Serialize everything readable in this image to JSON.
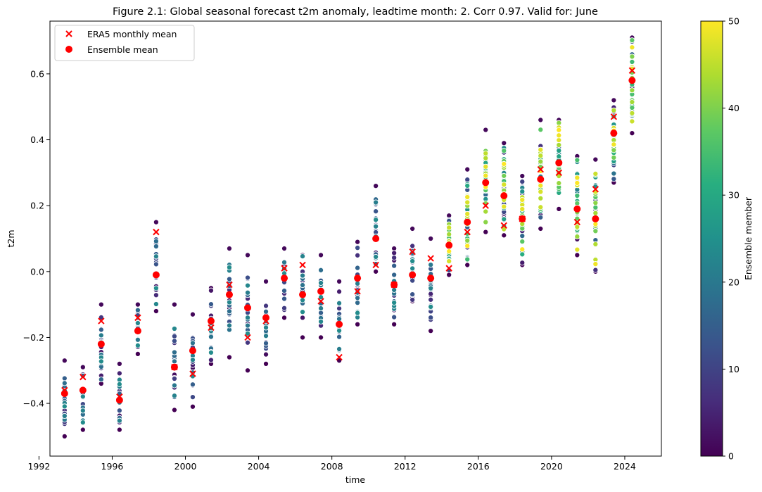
{
  "chart_data": {
    "type": "scatter",
    "title": "Figure 2.1: Global seasonal forecast t2m anomaly, leadtime month: 2. Corr 0.97. Valid for: June",
    "xlabel": "time",
    "ylabel": "t2m",
    "xlim": [
      1992.6,
      2026.0
    ],
    "ylim": [
      -0.56,
      0.76
    ],
    "xticks": [
      1992,
      1996,
      2000,
      2004,
      2008,
      2012,
      2016,
      2020,
      2024
    ],
    "yticks": [
      -0.4,
      -0.2,
      0.0,
      0.2,
      0.4,
      0.6
    ],
    "ytick_labels": [
      "−0.4",
      "−0.2",
      "0.0",
      "0.2",
      "0.4",
      "0.6"
    ],
    "colorbar": {
      "label": "Ensemble member",
      "range": [
        0,
        50
      ],
      "ticks": [
        0,
        10,
        20,
        30,
        40,
        50
      ],
      "colormap": "viridis"
    },
    "legend": {
      "position": "upper-left",
      "entries": [
        {
          "label": "ERA5 monthly mean",
          "marker": "x",
          "color": "#ff0000"
        },
        {
          "label": "Ensemble mean",
          "marker": "o",
          "color": "#ff0000"
        }
      ]
    },
    "years": [
      1993,
      1994,
      1995,
      1996,
      1997,
      1998,
      1999,
      2000,
      2001,
      2002,
      2003,
      2004,
      2005,
      2006,
      2007,
      2008,
      2009,
      2010,
      2011,
      2012,
      2013,
      2014,
      2015,
      2016,
      2017,
      2018,
      2019,
      2020,
      2021,
      2022,
      2023,
      2024
    ],
    "ensemble_size": [
      25,
      25,
      25,
      25,
      25,
      25,
      25,
      25,
      25,
      25,
      25,
      25,
      25,
      25,
      25,
      25,
      25,
      25,
      25,
      25,
      25,
      51,
      51,
      51,
      51,
      51,
      51,
      51,
      51,
      51,
      51,
      51
    ],
    "ensemble_min": [
      -0.5,
      -0.48,
      -0.34,
      -0.48,
      -0.25,
      -0.12,
      -0.42,
      -0.41,
      -0.28,
      -0.26,
      -0.3,
      -0.28,
      -0.14,
      -0.2,
      -0.2,
      -0.27,
      -0.16,
      0.0,
      -0.16,
      -0.09,
      -0.18,
      -0.01,
      0.02,
      0.12,
      0.11,
      0.02,
      0.13,
      0.19,
      0.05,
      0.0,
      0.27,
      0.42
    ],
    "ensemble_max": [
      -0.27,
      -0.29,
      -0.1,
      -0.28,
      -0.1,
      0.15,
      -0.1,
      -0.13,
      -0.05,
      0.07,
      0.05,
      -0.03,
      0.07,
      0.05,
      0.05,
      -0.03,
      0.09,
      0.26,
      0.07,
      0.13,
      0.1,
      0.17,
      0.31,
      0.43,
      0.39,
      0.29,
      0.46,
      0.46,
      0.35,
      0.34,
      0.52,
      0.71
    ],
    "era5_monthly_mean": [
      -0.36,
      -0.32,
      -0.15,
      -0.38,
      -0.14,
      0.12,
      -0.29,
      -0.31,
      -0.17,
      -0.04,
      -0.2,
      -0.15,
      0.01,
      0.02,
      -0.09,
      -0.26,
      -0.06,
      0.02,
      -0.04,
      0.06,
      0.04,
      0.01,
      0.12,
      0.2,
      0.14,
      0.16,
      0.31,
      0.3,
      0.15,
      0.25,
      0.47,
      0.61
    ],
    "ensemble_mean": [
      -0.37,
      -0.36,
      -0.22,
      -0.39,
      -0.18,
      -0.01,
      -0.29,
      -0.24,
      -0.15,
      -0.07,
      -0.11,
      -0.14,
      -0.02,
      -0.07,
      -0.06,
      -0.16,
      -0.02,
      0.1,
      -0.04,
      -0.01,
      -0.02,
      0.08,
      0.15,
      0.27,
      0.23,
      0.16,
      0.28,
      0.33,
      0.19,
      0.16,
      0.42,
      0.58
    ]
  }
}
